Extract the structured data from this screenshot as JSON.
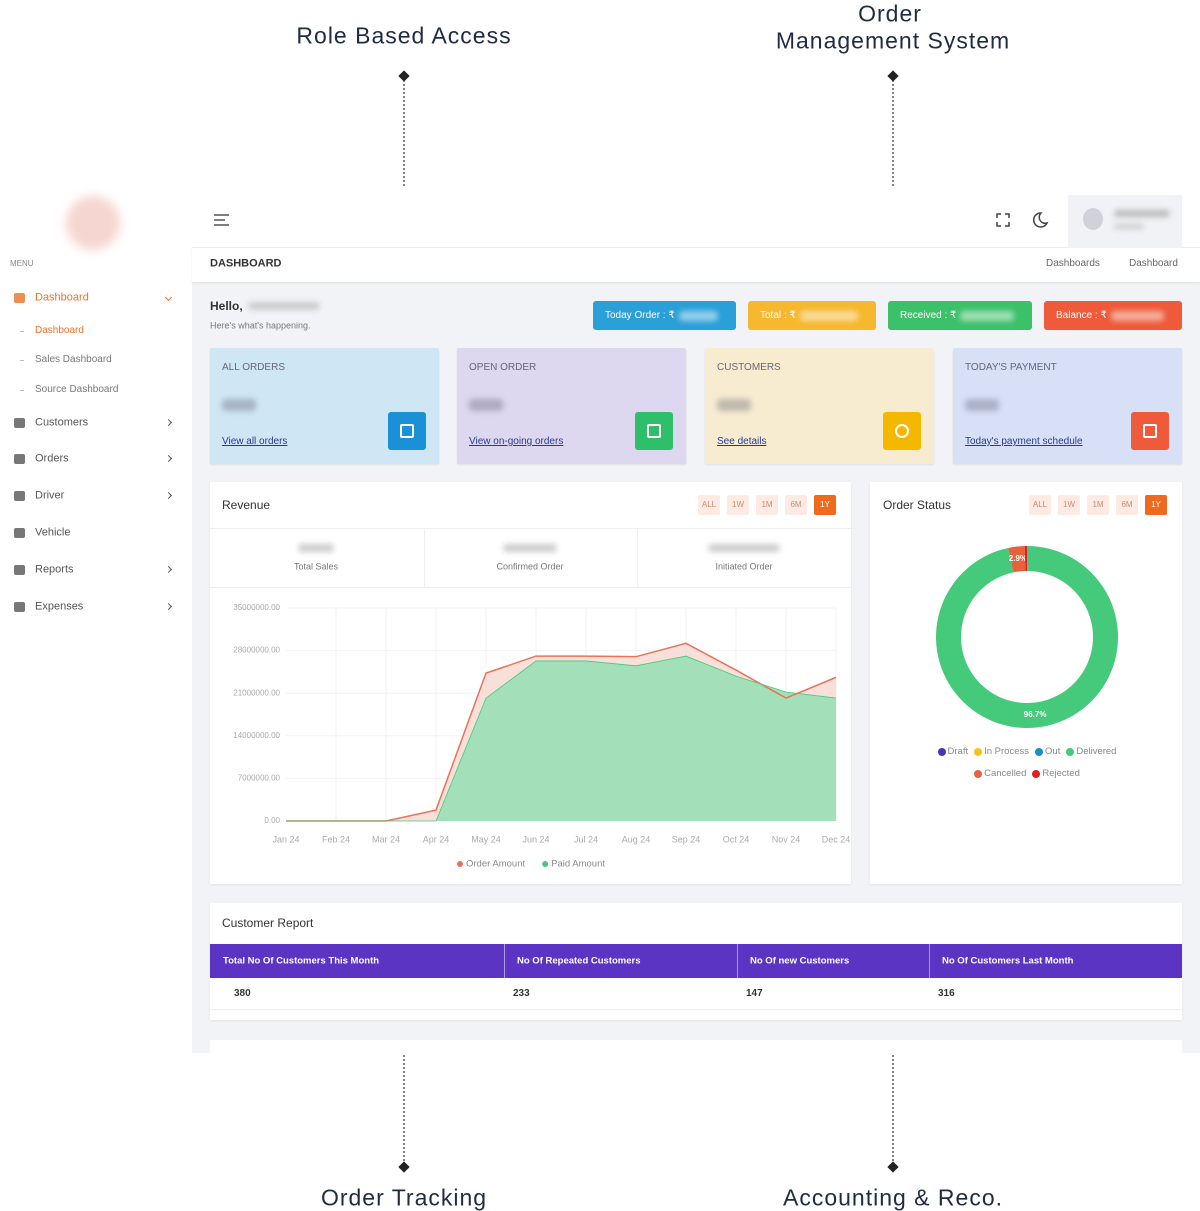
{
  "callouts": {
    "top_left": "Role Based Access",
    "top_right": [
      "Order",
      "Management System"
    ],
    "bottom_left": "Order Tracking",
    "bottom_right": "Accounting & Reco."
  },
  "sidebar": {
    "menu_label": "MENU",
    "items": [
      {
        "label": "Dashboard",
        "expandable": true,
        "children": [
          "Dashboard",
          "Sales Dashboard",
          "Source Dashboard"
        ]
      },
      {
        "label": "Customers",
        "expandable": true
      },
      {
        "label": "Orders",
        "expandable": true
      },
      {
        "label": "Driver",
        "expandable": true
      },
      {
        "label": "Vehicle",
        "expandable": false
      },
      {
        "label": "Reports",
        "expandable": true
      },
      {
        "label": "Expenses",
        "expandable": true
      }
    ]
  },
  "header": {
    "page_title": "DASHBOARD",
    "breadcrumbs": [
      "Dashboards",
      "Dashboard"
    ]
  },
  "greeting": {
    "hello": "Hello,",
    "subtitle": "Here's what's happening."
  },
  "badges": [
    "Today Order : ₹",
    "Total : ₹",
    "Received : ₹",
    "Balance : ₹"
  ],
  "cards": [
    {
      "title": "ALL ORDERS",
      "link": "View all orders"
    },
    {
      "title": "OPEN ORDER",
      "link": "View on-going orders"
    },
    {
      "title": "CUSTOMERS",
      "link": "See details"
    },
    {
      "title": "TODAY'S PAYMENT",
      "link": "Today's payment schedule"
    }
  ],
  "chart_data": [
    {
      "type": "area",
      "title": "Revenue",
      "filters": [
        "ALL",
        "1W",
        "1M",
        "6M",
        "1Y"
      ],
      "stats": [
        "Total Sales",
        "Confirmed Order",
        "Initiated Order"
      ],
      "categories": [
        "Jan 24",
        "Feb 24",
        "Mar 24",
        "Apr 24",
        "May 24",
        "Jun 24",
        "Jul 24",
        "Aug 24",
        "Sep 24",
        "Oct 24",
        "Nov 24",
        "Dec 24"
      ],
      "series": [
        {
          "name": "Order Amount",
          "color": "#e8735a",
          "values": [
            0,
            0,
            0,
            1800000,
            24300000,
            27100000,
            27100000,
            27000000,
            29200000,
            24800000,
            20200000,
            23600000
          ]
        },
        {
          "name": "Paid Amount",
          "color": "#45c97a",
          "values": [
            0,
            0,
            0,
            0,
            20200000,
            26300000,
            26300000,
            25500000,
            27100000,
            23800000,
            21200000,
            20200000
          ]
        }
      ],
      "ylim": [
        0,
        35000000
      ],
      "yticks": [
        {
          "value": 0,
          "label": "0.00"
        },
        {
          "value": 7000000,
          "label": "7000000.00"
        },
        {
          "value": 14000000,
          "label": "14000000.00"
        },
        {
          "value": 21000000,
          "label": "21000000.00"
        },
        {
          "value": 28000000,
          "label": "28000000.00"
        },
        {
          "value": 35000000,
          "label": "35000000.00"
        }
      ],
      "grid": true,
      "legend": "bottom"
    },
    {
      "type": "donut",
      "title": "Order Status",
      "filters": [
        "ALL",
        "1W",
        "1M",
        "6M",
        "1Y"
      ],
      "categories": [
        "Draft",
        "In Process",
        "Out",
        "Delivered",
        "Cancelled",
        "Rejected"
      ],
      "values": [
        0,
        0,
        0,
        96.7,
        2.9,
        0.4
      ],
      "value_labels": [
        null,
        null,
        null,
        "96.7%",
        "2.9%",
        null
      ],
      "colors": [
        "#3a3ab8",
        "#f5c518",
        "#1a8fc4",
        "#45c97a",
        "#e8603c",
        "#e02020"
      ],
      "legend": "bottom"
    }
  ],
  "customer_report": {
    "title": "Customer Report",
    "columns": [
      "Total No Of Customers This Month",
      "No Of Repeated Customers",
      "No Of new Customers",
      "No Of Customers Last Month"
    ],
    "rows": [
      [
        380,
        233,
        147,
        316
      ]
    ]
  }
}
